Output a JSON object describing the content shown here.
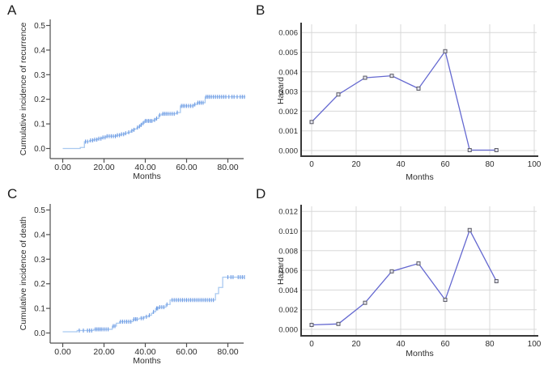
{
  "colors": {
    "background": "#ffffff",
    "step_line": "#a9c9f0",
    "censor_mark": "#6c9ae4",
    "hazard_line": "#6468d0",
    "marker_stroke": "#5a5a64",
    "marker_fill": "#e4e4ee",
    "grid": "#d8d8d8",
    "axis_ac": "#4f4f4f",
    "axis_bd": "#383838",
    "text": "#2d2d2d"
  },
  "chart_data": {
    "panels": [
      {
        "id": "A",
        "panel_label": "A",
        "type": "step",
        "ylabel": "Cumulative incidence of recurrence",
        "xlabel": "Months",
        "x_tick_values": [
          0,
          20,
          40,
          60,
          80
        ],
        "x_tick_labels": [
          "0.00",
          "20.00",
          "40.00",
          "60.00",
          "80.00"
        ],
        "y_tick_values": [
          0,
          0.1,
          0.2,
          0.3,
          0.4,
          0.5
        ],
        "y_tick_labels": [
          "0.0",
          "0.1",
          "0.2",
          "0.3",
          "0.4",
          "0.5"
        ],
        "xlim": [
          0,
          88.5
        ],
        "ylim": [
          0,
          0.55
        ],
        "grid": false,
        "steps": [
          [
            0,
            0
          ],
          [
            8.5,
            0.004
          ],
          [
            10.5,
            0.028
          ],
          [
            13,
            0.033
          ],
          [
            15,
            0.036
          ],
          [
            17,
            0.04
          ],
          [
            19,
            0.045
          ],
          [
            21,
            0.05
          ],
          [
            26,
            0.054
          ],
          [
            28,
            0.058
          ],
          [
            30,
            0.062
          ],
          [
            31.5,
            0.066
          ],
          [
            33,
            0.072
          ],
          [
            34,
            0.076
          ],
          [
            35,
            0.08
          ],
          [
            36,
            0.085
          ],
          [
            36.8,
            0.09
          ],
          [
            37.6,
            0.096
          ],
          [
            38.4,
            0.103
          ],
          [
            39.5,
            0.112
          ],
          [
            44,
            0.116
          ],
          [
            45,
            0.122
          ],
          [
            46.5,
            0.136
          ],
          [
            48,
            0.141
          ],
          [
            55,
            0.146
          ],
          [
            57,
            0.173
          ],
          [
            63.5,
            0.179
          ],
          [
            65,
            0.186
          ],
          [
            69,
            0.21
          ],
          [
            88.5,
            0.21
          ]
        ],
        "censor_months": [
          11,
          12,
          13.5,
          14.5,
          15.5,
          16.5,
          17.5,
          18.5,
          19.5,
          20.5,
          21.5,
          22.5,
          23.5,
          24.5,
          25.5,
          26.5,
          27.5,
          28.5,
          29.5,
          30.5,
          32,
          33.5,
          34.5,
          36.2,
          37.2,
          38,
          39,
          40,
          40.8,
          41.6,
          42.4,
          43.2,
          44.5,
          45.5,
          47,
          48.5,
          49.3,
          50.1,
          51,
          52,
          53,
          54,
          55.5,
          57.5,
          58.3,
          59.1,
          60,
          61,
          62,
          63,
          64,
          65.5,
          66.3,
          67.1,
          68,
          69.5,
          70.3,
          71.1,
          72,
          73,
          74,
          75,
          76,
          77,
          78,
          79,
          80.5,
          82,
          83,
          84.5,
          86,
          87,
          88
        ]
      },
      {
        "id": "B",
        "panel_label": "B",
        "type": "line",
        "ylabel": "Hazard",
        "xlabel": "Months",
        "x_tick_values": [
          0,
          20,
          40,
          60,
          80,
          100
        ],
        "x_tick_labels": [
          "0",
          "20",
          "40",
          "60",
          "80",
          "100"
        ],
        "y_tick_values": [
          0,
          0.001,
          0.002,
          0.003,
          0.004,
          0.005,
          0.006
        ],
        "y_tick_labels": [
          "0.000",
          "0.001",
          "0.002",
          "0.003",
          "0.004",
          "0.005",
          "0.006"
        ],
        "xlim": [
          0,
          100
        ],
        "ylim": [
          0,
          0.0064
        ],
        "grid": true,
        "points": [
          [
            0,
            0.00145
          ],
          [
            12,
            0.00285
          ],
          [
            24,
            0.0037
          ],
          [
            36,
            0.0038
          ],
          [
            48,
            0.00315
          ],
          [
            60,
            0.00505
          ],
          [
            71,
            2e-05
          ],
          [
            83,
            2e-05
          ]
        ]
      },
      {
        "id": "C",
        "panel_label": "C",
        "type": "step",
        "ylabel": "Cumulative incidence of death",
        "xlabel": "Months",
        "x_tick_values": [
          0,
          20,
          40,
          60,
          80
        ],
        "x_tick_labels": [
          "0.00",
          "20.00",
          "40.00",
          "60.00",
          "80.00"
        ],
        "y_tick_values": [
          0,
          0.1,
          0.2,
          0.3,
          0.4,
          0.5
        ],
        "y_tick_labels": [
          "0.0",
          "0.1",
          "0.2",
          "0.3",
          "0.4",
          "0.5"
        ],
        "xlim": [
          0,
          88
        ],
        "ylim": [
          0,
          0.55
        ],
        "grid": false,
        "steps": [
          [
            0,
            0.005
          ],
          [
            7,
            0.01
          ],
          [
            15,
            0.015
          ],
          [
            24,
            0.028
          ],
          [
            26,
            0.04
          ],
          [
            27.5,
            0.046
          ],
          [
            34,
            0.056
          ],
          [
            37,
            0.06
          ],
          [
            39.5,
            0.066
          ],
          [
            41.5,
            0.072
          ],
          [
            43,
            0.08
          ],
          [
            43.8,
            0.086
          ],
          [
            45,
            0.1
          ],
          [
            46.5,
            0.105
          ],
          [
            50,
            0.116
          ],
          [
            52,
            0.134
          ],
          [
            74,
            0.16
          ],
          [
            75.5,
            0.185
          ],
          [
            77.5,
            0.227
          ],
          [
            88,
            0.227
          ]
        ],
        "censor_months": [
          8,
          10,
          12,
          13,
          14,
          15.8,
          16.6,
          17.4,
          18.2,
          19,
          20,
          21,
          22,
          24.5,
          25.3,
          28,
          29,
          30,
          31,
          32,
          33,
          34.5,
          35.3,
          36,
          38,
          39,
          40.5,
          42,
          44,
          45.5,
          46,
          47,
          48,
          49,
          50.5,
          53,
          54,
          55,
          56,
          57,
          58,
          59,
          60,
          61,
          62,
          63,
          64,
          65,
          66,
          67,
          68,
          69,
          70,
          71,
          72,
          73,
          80,
          81.5,
          82.5,
          85,
          86,
          87,
          88
        ]
      },
      {
        "id": "D",
        "panel_label": "D",
        "type": "line",
        "ylabel": "Hazard",
        "xlabel": "Months",
        "x_tick_values": [
          0,
          20,
          40,
          60,
          80,
          100
        ],
        "x_tick_labels": [
          "0",
          "20",
          "40",
          "60",
          "80",
          "100"
        ],
        "y_tick_values": [
          0,
          0.002,
          0.004,
          0.006,
          0.008,
          0.01,
          0.012
        ],
        "y_tick_labels": [
          "0.000",
          "0.002",
          "0.004",
          "0.006",
          "0.008",
          "0.010",
          "0.012"
        ],
        "xlim": [
          0,
          100
        ],
        "ylim": [
          0,
          0.0128
        ],
        "grid": true,
        "points": [
          [
            0,
            0.00045
          ],
          [
            12,
            0.00055
          ],
          [
            24,
            0.0027
          ],
          [
            36,
            0.0059
          ],
          [
            48,
            0.0067
          ],
          [
            60,
            0.003
          ],
          [
            71,
            0.0101
          ],
          [
            83,
            0.0049
          ]
        ]
      }
    ]
  }
}
